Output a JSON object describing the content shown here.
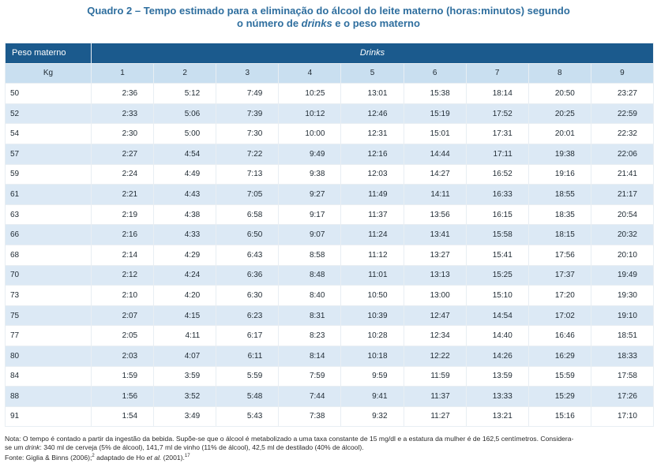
{
  "title": {
    "line1": "Quadro 2 – Tempo estimado para a eliminação do álcool do leite materno (horas:minutos) segundo",
    "line2_prefix": "o número de ",
    "line2_em": "drinks",
    "line2_suffix": " e o peso materno"
  },
  "table": {
    "peso_header": "Peso materno",
    "drinks_header": "Drinks",
    "kg_header": "Kg",
    "drink_numbers": [
      "1",
      "2",
      "3",
      "4",
      "5",
      "6",
      "7",
      "8",
      "9"
    ],
    "rows": [
      {
        "kg": "50",
        "values": [
          "2:36",
          "5:12",
          "7:49",
          "10:25",
          "13:01",
          "15:38",
          "18:14",
          "20:50",
          "23:27"
        ]
      },
      {
        "kg": "52",
        "values": [
          "2:33",
          "5:06",
          "7:39",
          "10:12",
          "12:46",
          "15:19",
          "17:52",
          "20:25",
          "22:59"
        ]
      },
      {
        "kg": "54",
        "values": [
          "2:30",
          "5:00",
          "7:30",
          "10:00",
          "12:31",
          "15:01",
          "17:31",
          "20:01",
          "22:32"
        ]
      },
      {
        "kg": "57",
        "values": [
          "2:27",
          "4:54",
          "7:22",
          "9:49",
          "12:16",
          "14:44",
          "17:11",
          "19:38",
          "22:06"
        ]
      },
      {
        "kg": "59",
        "values": [
          "2:24",
          "4:49",
          "7:13",
          "9:38",
          "12:03",
          "14:27",
          "16:52",
          "19:16",
          "21:41"
        ]
      },
      {
        "kg": "61",
        "values": [
          "2:21",
          "4:43",
          "7:05",
          "9:27",
          "11:49",
          "14:11",
          "16:33",
          "18:55",
          "21:17"
        ]
      },
      {
        "kg": "63",
        "values": [
          "2:19",
          "4:38",
          "6:58",
          "9:17",
          "11:37",
          "13:56",
          "16:15",
          "18:35",
          "20:54"
        ]
      },
      {
        "kg": "66",
        "values": [
          "2:16",
          "4:33",
          "6:50",
          "9:07",
          "11:24",
          "13:41",
          "15:58",
          "18:15",
          "20:32"
        ]
      },
      {
        "kg": "68",
        "values": [
          "2:14",
          "4:29",
          "6:43",
          "8:58",
          "11:12",
          "13:27",
          "15:41",
          "17:56",
          "20:10"
        ]
      },
      {
        "kg": "70",
        "values": [
          "2:12",
          "4:24",
          "6:36",
          "8:48",
          "11:01",
          "13:13",
          "15:25",
          "17:37",
          "19:49"
        ]
      },
      {
        "kg": "73",
        "values": [
          "2:10",
          "4:20",
          "6:30",
          "8:40",
          "10:50",
          "13:00",
          "15:10",
          "17:20",
          "19:30"
        ]
      },
      {
        "kg": "75",
        "values": [
          "2:07",
          "4:15",
          "6:23",
          "8:31",
          "10:39",
          "12:47",
          "14:54",
          "17:02",
          "19:10"
        ]
      },
      {
        "kg": "77",
        "values": [
          "2:05",
          "4:11",
          "6:17",
          "8:23",
          "10:28",
          "12:34",
          "14:40",
          "16:46",
          "18:51"
        ]
      },
      {
        "kg": "80",
        "values": [
          "2:03",
          "4:07",
          "6:11",
          "8:14",
          "10:18",
          "12:22",
          "14:26",
          "16:29",
          "18:33"
        ]
      },
      {
        "kg": "84",
        "values": [
          "1:59",
          "3:59",
          "5:59",
          "7:59",
          "9:59",
          "11:59",
          "13:59",
          "15:59",
          "17:58"
        ]
      },
      {
        "kg": "88",
        "values": [
          "1:56",
          "3:52",
          "5:48",
          "7:44",
          "9:41",
          "11:37",
          "13:33",
          "15:29",
          "17:26"
        ]
      },
      {
        "kg": "91",
        "values": [
          "1:54",
          "3:49",
          "5:43",
          "7:38",
          "9:32",
          "11:27",
          "13:21",
          "15:16",
          "17:10"
        ]
      }
    ]
  },
  "note": {
    "line1": "Nota: O tempo é contado a partir da ingestão da bebida. Supõe-se que o álcool é metabolizado a uma taxa constante de 15 mg/dl e a estatura da mulher é de 162,5 centímetros. Considera-",
    "line2_prefix": "se um ",
    "line2_em": "drink",
    "line2_suffix": ": 340 ml de cerveja (5% de álcool), 141,7 ml de vinho (11% de álcool), 42,5 ml de destilado (40% de álcool).",
    "source_prefix": "Fonte: Giglia & Binns (2006);",
    "source_sup1": "2",
    "source_mid": " adaptado de Ho ",
    "source_em": "et al.",
    "source_suffix": " (2001).",
    "source_sup2": "17"
  },
  "colors": {
    "title": "#2e6e9e",
    "header_dark": "#1b5a8d",
    "header_light": "#c9dff0",
    "row_stripe": "#dce9f5"
  }
}
